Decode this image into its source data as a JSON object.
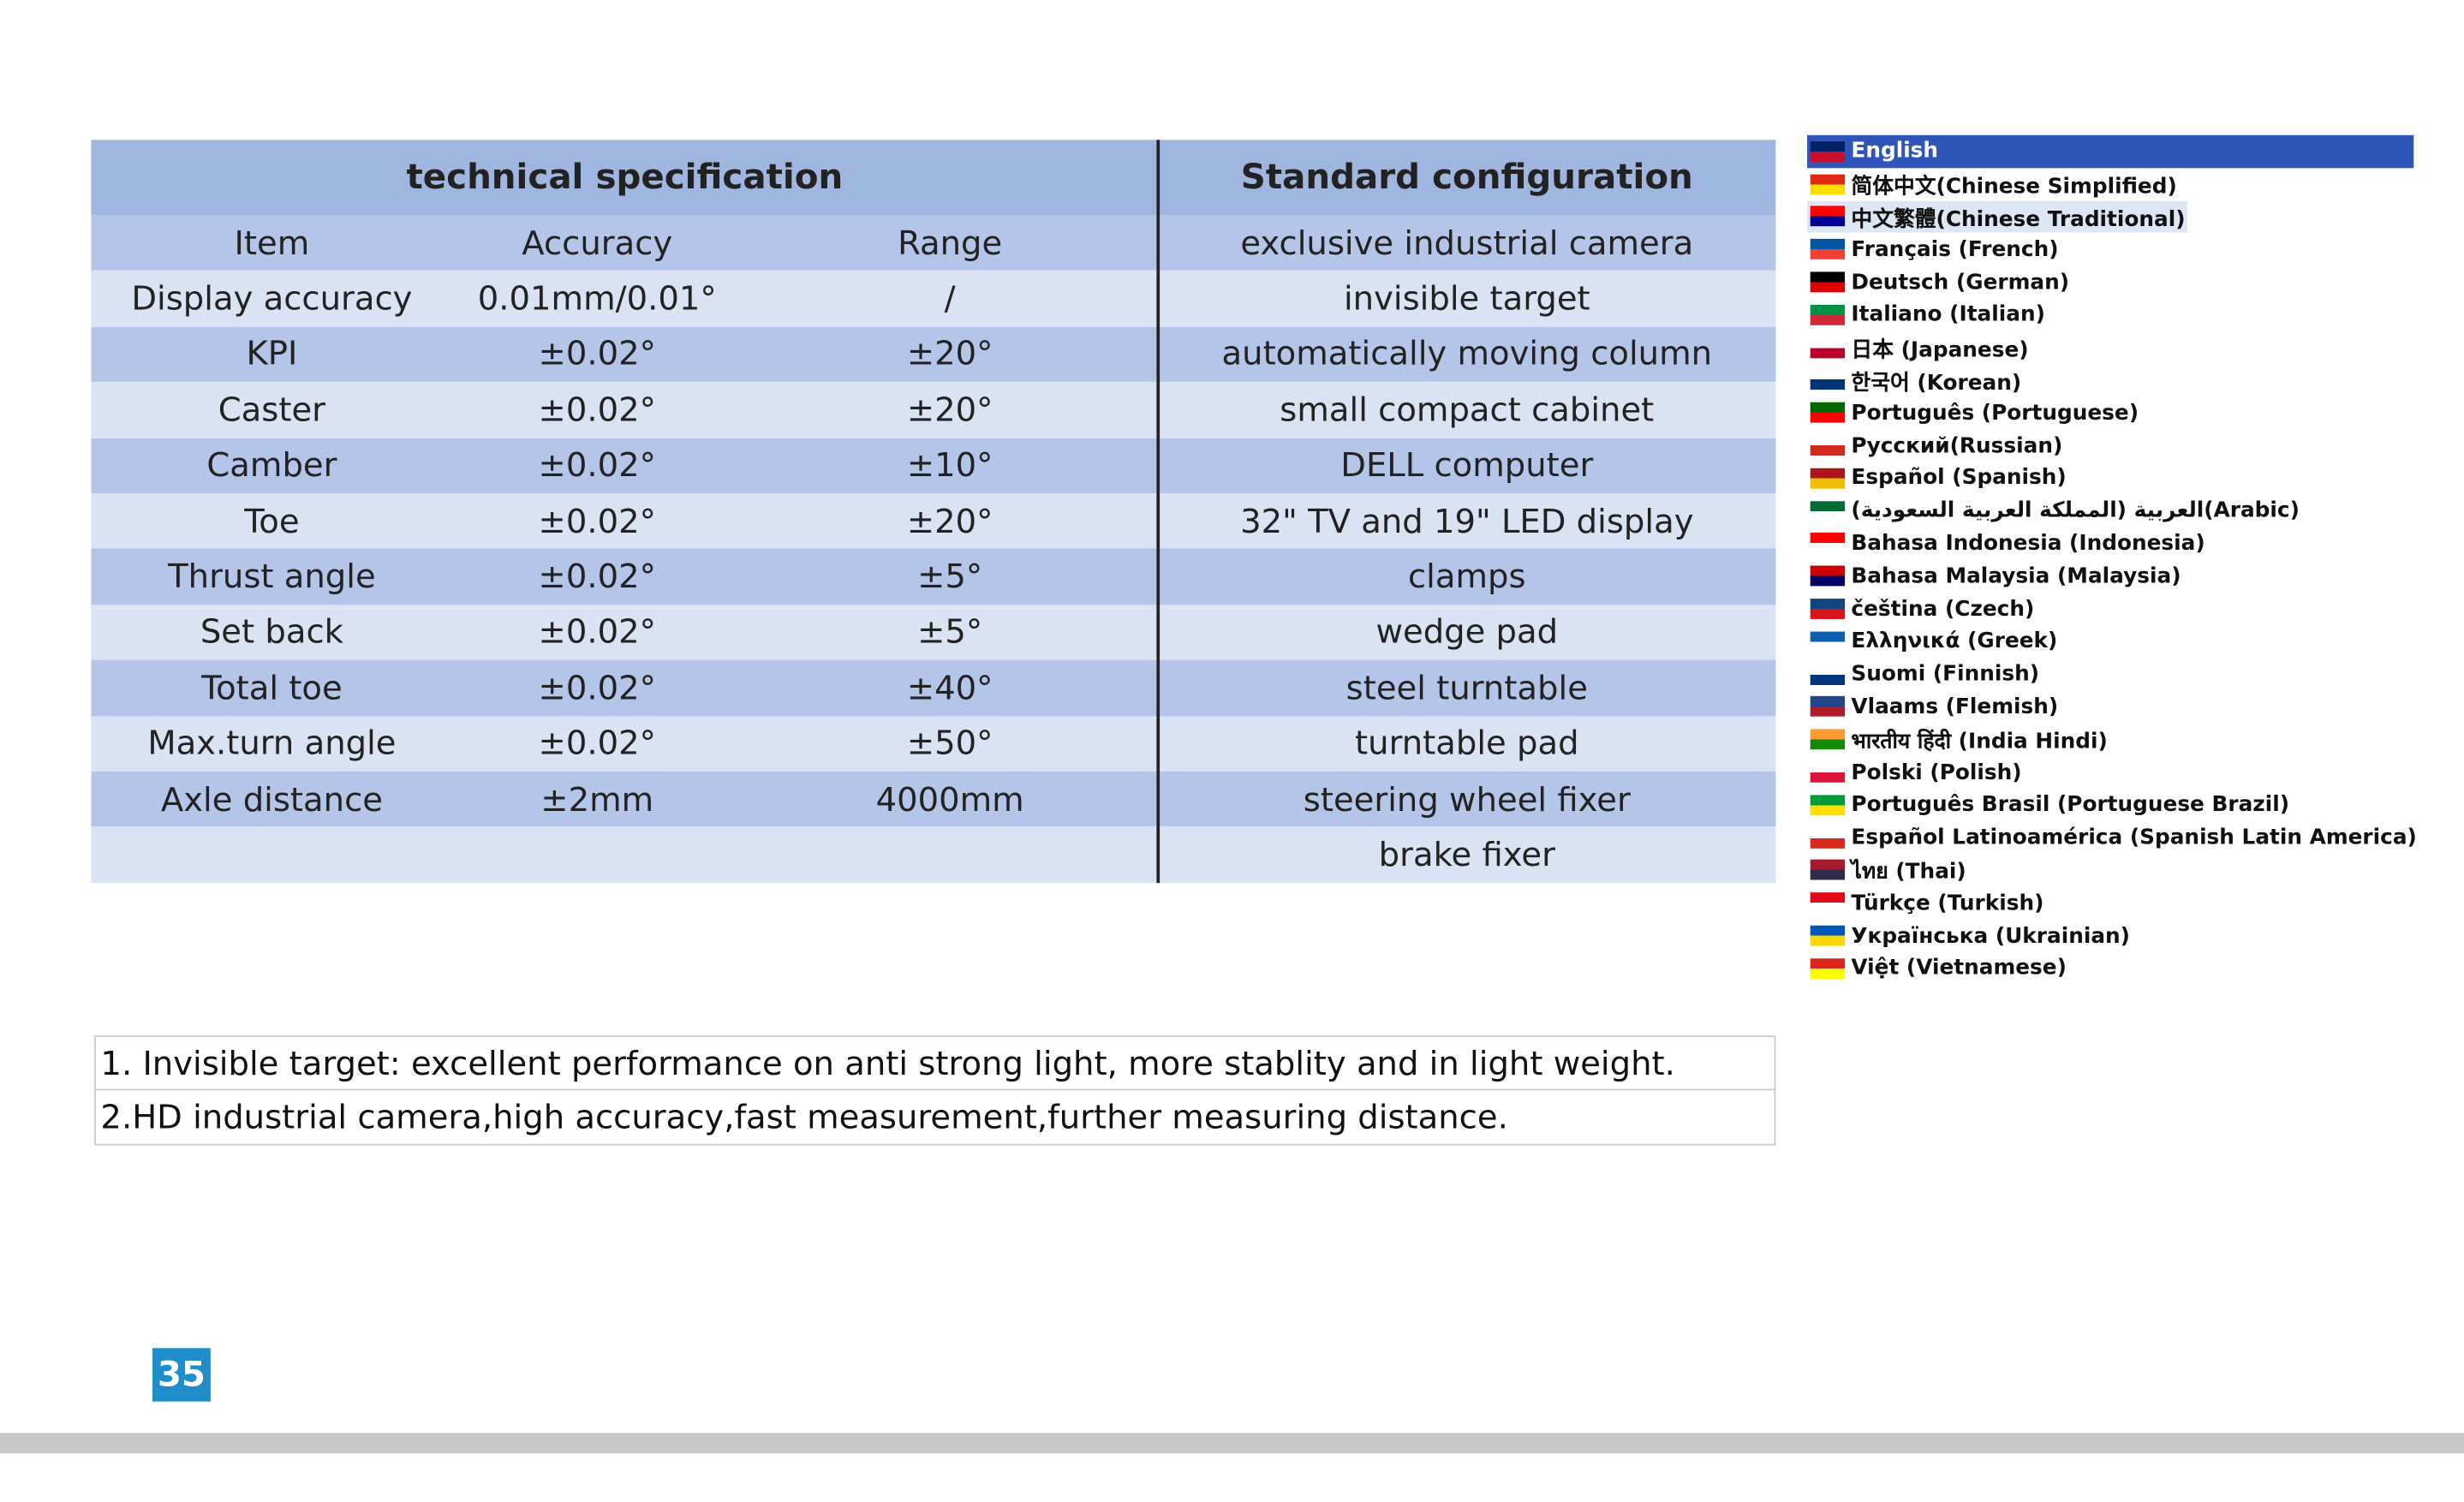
{
  "spec_table": {
    "title_left": "technical specification",
    "title_right": "Standard configuration",
    "columns": [
      "Item",
      "Accuracy",
      "Range"
    ],
    "rows": [
      [
        "Display accuracy",
        "0.01mm/0.01°",
        "/"
      ],
      [
        "KPI",
        "±0.02°",
        "±20°"
      ],
      [
        "Caster",
        "±0.02°",
        "±20°"
      ],
      [
        "Camber",
        "±0.02°",
        "±10°"
      ],
      [
        "Toe",
        "±0.02°",
        "±20°"
      ],
      [
        "Thrust angle",
        "±0.02°",
        "±5°"
      ],
      [
        "Set back",
        "±0.02°",
        "±5°"
      ],
      [
        "Total toe",
        "±0.02°",
        "±40°"
      ],
      [
        "Max.turn angle",
        "±0.02°",
        "±50°"
      ],
      [
        "Axle distance",
        "±2mm",
        "4000mm"
      ]
    ],
    "configuration": [
      "exclusive industrial camera",
      "invisible  target",
      "automatically moving column",
      "small compact cabinet",
      "DELL computer",
      "32\" TV and 19\" LED display",
      "clamps",
      "wedge pad",
      "steel turntable",
      "turntable pad",
      "steering wheel fixer",
      "brake fixer"
    ]
  },
  "notes": [
    "1. Invisible target: excellent performance on anti strong light, more stablity and in light weight.",
    "2.HD industrial camera,high accuracy,fast measurement,further measuring distance."
  ],
  "languages": {
    "selected": 0,
    "highlighted": 2,
    "items": [
      "English",
      "简体中文(Chinese Simplified)",
      "中文繁體(Chinese Traditional)",
      "Français (French)",
      "Deutsch (German)",
      "Italiano (Italian)",
      "日本 (Japanese)",
      "한국어 (Korean)",
      "Português (Portuguese)",
      "Русский(Russian)",
      "Español (Spanish)",
      "العربية (المملكة العربية السعودية)(Arabic)",
      "Bahasa Indonesia (Indonesia)",
      "Bahasa Malaysia (Malaysia)",
      "čeština (Czech)",
      "Ελληνικά (Greek)",
      "Suomi (Finnish)",
      "Vlaams (Flemish)",
      "भारतीय हिंदी (India Hindi)",
      "Polski (Polish)",
      "Português Brasil (Portuguese Brazil)",
      "Español Latinoamérica (Spanish Latin America)",
      "ไทย (Thai)",
      "Türkçe (Turkish)",
      "Українська (Ukrainian)",
      "Việt (Vietnamese)"
    ]
  },
  "page_number": "35"
}
